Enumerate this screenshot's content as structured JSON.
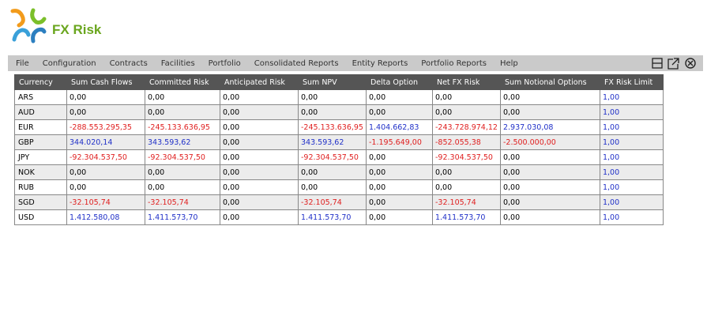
{
  "header": {
    "title": "FX Risk"
  },
  "menu": [
    "File",
    "Configuration",
    "Contracts",
    "Facilities",
    "Portfolio",
    "Consolidated Reports",
    "Entity Reports",
    "Portfolio Reports",
    "Help"
  ],
  "table": {
    "columns": [
      "Currency",
      "Sum Cash Flows",
      "Committed Risk",
      "Anticipated Risk",
      "Sum NPV",
      "Delta Option",
      "Net FX Risk",
      "Sum Notional Options",
      "FX Risk Limit"
    ],
    "rows": [
      [
        "ARS",
        "0,00",
        "0,00",
        "0,00",
        "0,00",
        "0,00",
        "0,00",
        "0,00",
        "1,00"
      ],
      [
        "AUD",
        "0,00",
        "0,00",
        "0,00",
        "0,00",
        "0,00",
        "0,00",
        "0,00",
        "1,00"
      ],
      [
        "EUR",
        "-288.553.295,35",
        "-245.133.636,95",
        "0,00",
        "-245.133.636,95",
        "1.404.662,83",
        "-243.728.974,12",
        "2.937.030,08",
        "1,00"
      ],
      [
        "GBP",
        "344.020,14",
        "343.593,62",
        "0,00",
        "343.593,62",
        "-1.195.649,00",
        "-852.055,38",
        "-2.500.000,00",
        "1,00"
      ],
      [
        "JPY",
        "-92.304.537,50",
        "-92.304.537,50",
        "0,00",
        "-92.304.537,50",
        "0,00",
        "-92.304.537,50",
        "0,00",
        "1,00"
      ],
      [
        "NOK",
        "0,00",
        "0,00",
        "0,00",
        "0,00",
        "0,00",
        "0,00",
        "0,00",
        "1,00"
      ],
      [
        "RUB",
        "0,00",
        "0,00",
        "0,00",
        "0,00",
        "0,00",
        "0,00",
        "0,00",
        "1,00"
      ],
      [
        "SGD",
        "-32.105,74",
        "-32.105,74",
        "0,00",
        "-32.105,74",
        "0,00",
        "-32.105,74",
        "0,00",
        "1,00"
      ],
      [
        "USD",
        "1.412.580,08",
        "1.411.573,70",
        "0,00",
        "1.411.573,70",
        "0,00",
        "1.411.573,70",
        "0,00",
        "1,00"
      ]
    ]
  }
}
